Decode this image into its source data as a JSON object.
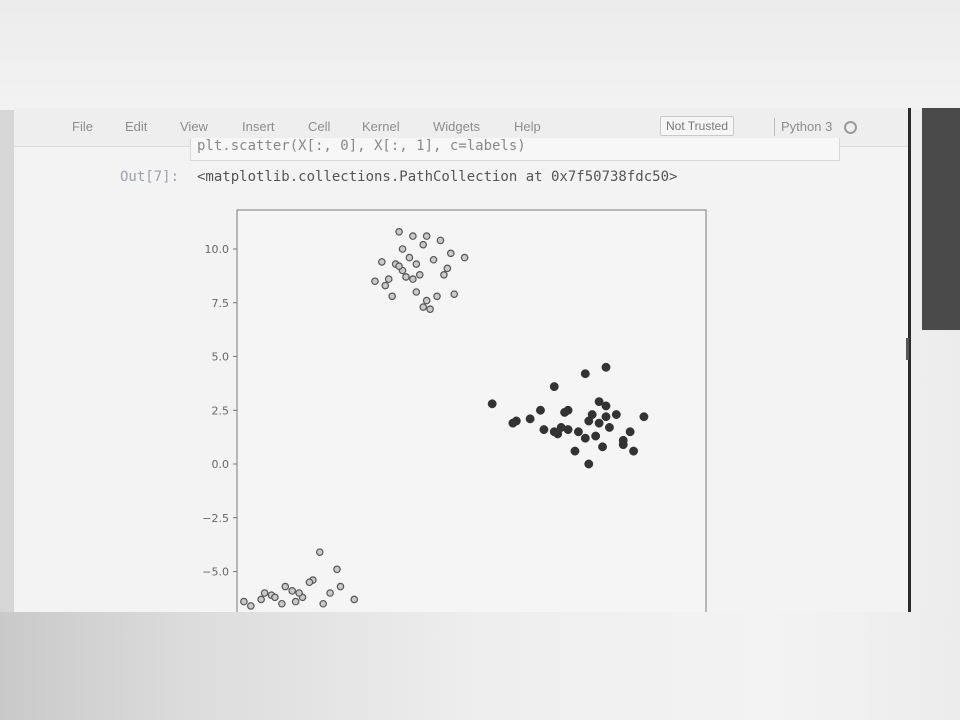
{
  "menubar": {
    "items": [
      "File",
      "Edit",
      "View",
      "Insert",
      "Cell",
      "Kernel",
      "Widgets",
      "Help"
    ],
    "trust_badge": "Not Trusted",
    "kernel": "Python 3"
  },
  "cell": {
    "code": "plt.scatter(X[:, 0], X[:, 1], c=labels)",
    "out_prompt": "Out[7]:",
    "output_text": "<matplotlib.collections.PathCollection at 0x7f50738fdc50>"
  },
  "colors": {
    "cluster_light": "#c9c9c9",
    "cluster_dark": "#333333",
    "point_edge": "#555555"
  },
  "chart_data": {
    "type": "scatter",
    "title": "",
    "xlabel": "",
    "ylabel": "",
    "ylim": [
      -6.7,
      11.0
    ],
    "xlim": [
      -4.6,
      9.0
    ],
    "yticks": [
      10.0,
      7.5,
      5.0,
      2.5,
      0.0,
      -2.5,
      -5.0
    ],
    "ytick_labels": [
      "10.0",
      "7.5",
      "5.0",
      "2.5",
      "0.0",
      "−2.5",
      "−5.0"
    ],
    "grid": false,
    "series": [
      {
        "color": "#c9c9c9",
        "x": [
          0.1,
          0.5,
          0.9,
          1.3,
          0.8,
          0.2,
          0.4,
          0.6,
          1.1,
          1.6,
          2.0,
          1.5,
          0.7,
          0.3,
          -0.2,
          -0.6,
          -0.1,
          0.6,
          0.9,
          1.2,
          1.7,
          1.4,
          0.0,
          0.5,
          -0.4,
          0.2,
          0.8,
          1.0,
          -0.3,
          0.1
        ],
        "y": [
          10.8,
          10.6,
          10.6,
          10.4,
          10.2,
          10.0,
          9.6,
          9.3,
          9.5,
          9.8,
          9.6,
          9.1,
          8.8,
          8.7,
          8.6,
          8.5,
          7.8,
          8.0,
          7.6,
          7.8,
          7.9,
          8.8,
          9.3,
          8.6,
          9.4,
          9.0,
          7.3,
          7.2,
          8.3,
          9.2
        ]
      },
      {
        "color": "#333333",
        "x": [
          2.8,
          3.5,
          3.9,
          4.3,
          4.6,
          4.8,
          5.0,
          5.3,
          5.5,
          5.6,
          5.7,
          5.8,
          5.9,
          6.0,
          6.1,
          6.2,
          6.4,
          6.6,
          6.8,
          7.2,
          3.4,
          4.2,
          4.6,
          5.2,
          5.6,
          6.1,
          6.6,
          6.9,
          5.0,
          6.1,
          5.5,
          4.9,
          5.9,
          4.7
        ],
        "y": [
          2.8,
          2.0,
          2.1,
          1.6,
          1.5,
          1.7,
          2.5,
          1.5,
          1.2,
          2.0,
          2.3,
          1.3,
          2.9,
          0.8,
          2.2,
          1.7,
          2.3,
          0.9,
          1.5,
          2.2,
          1.9,
          2.5,
          3.6,
          0.6,
          0.0,
          2.7,
          1.1,
          0.6,
          1.6,
          4.5,
          4.2,
          2.4,
          1.9,
          1.4
        ]
      },
      {
        "color": "#c9c9c9",
        "x": [
          -2.2,
          -3.2,
          -3.6,
          -3.9,
          -4.2,
          -4.4,
          -3.0,
          -2.7,
          -2.4,
          -1.9,
          -1.6,
          -1.2,
          -3.3,
          -3.8,
          -2.9,
          -2.5,
          -2.1,
          -1.7,
          -3.5,
          -2.8
        ],
        "y": [
          -4.1,
          -5.7,
          -6.1,
          -6.3,
          -6.6,
          -6.4,
          -5.9,
          -6.2,
          -5.4,
          -6.0,
          -5.7,
          -6.3,
          -6.5,
          -6.0,
          -6.4,
          -5.5,
          -6.5,
          -4.9,
          -6.2,
          -6.0
        ]
      }
    ]
  }
}
